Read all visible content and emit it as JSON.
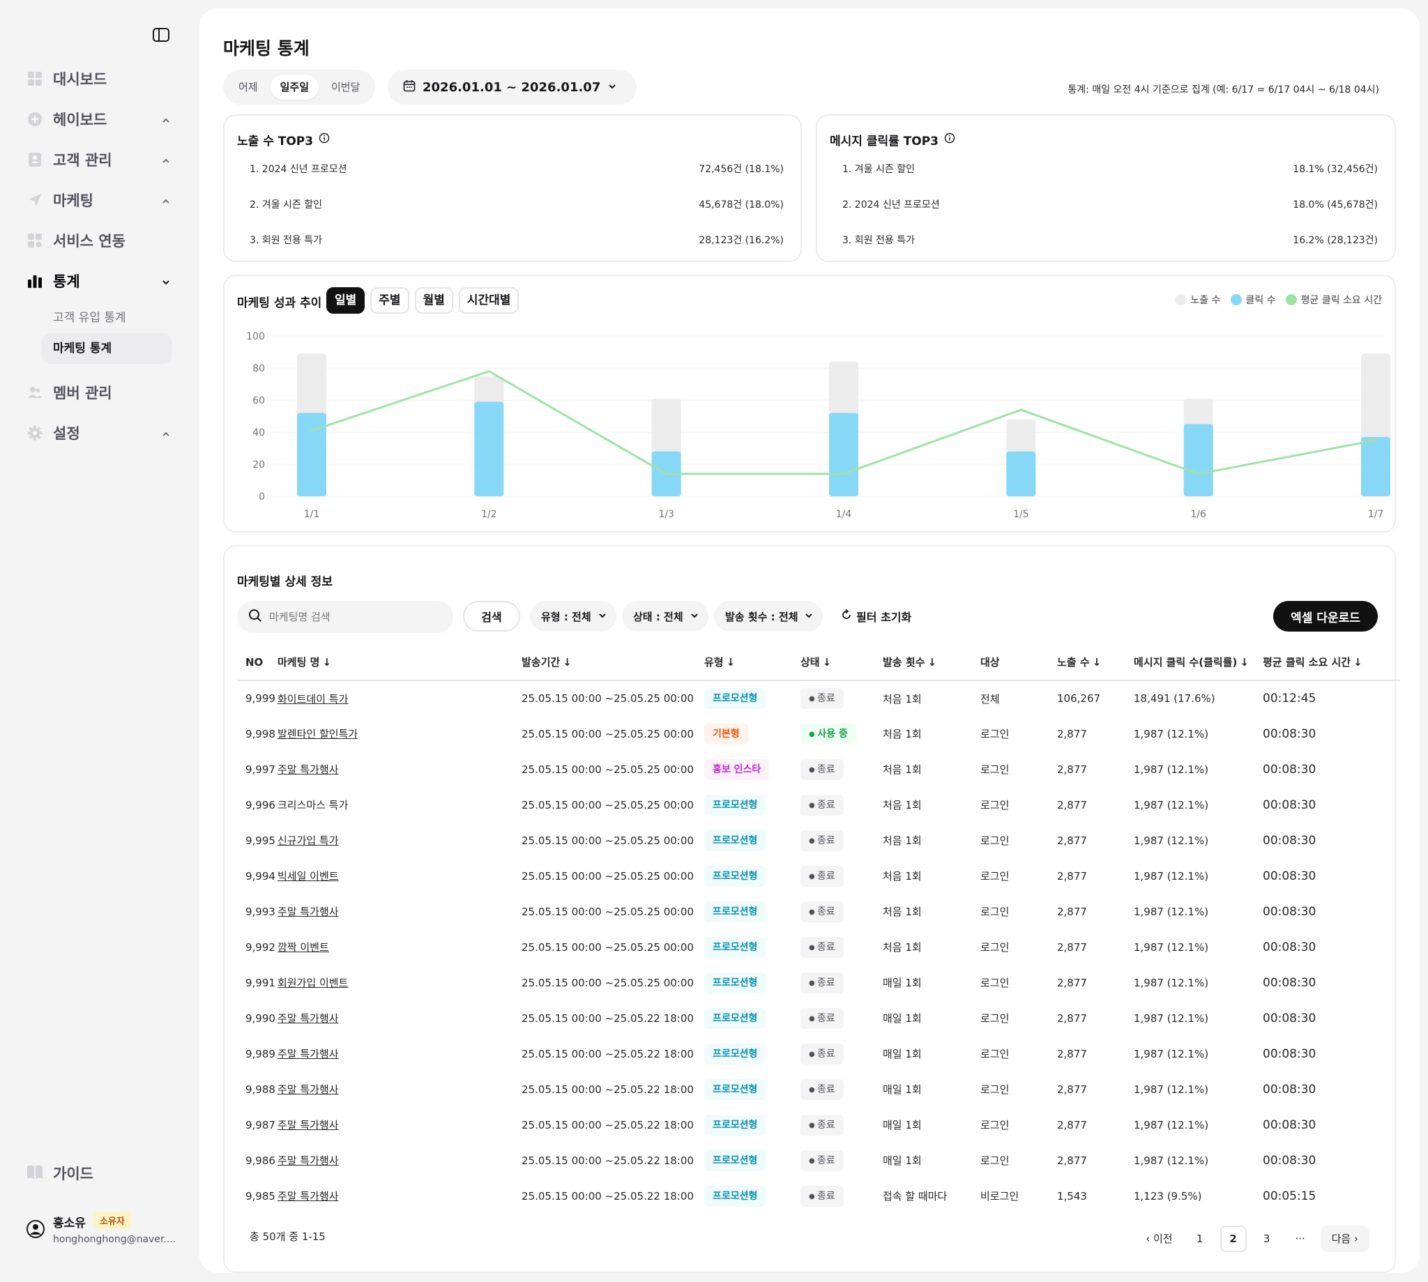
{
  "sidebar": {
    "items": [
      {
        "label": "대시보드",
        "icon": "dashboard-icon",
        "expanded": false,
        "chev": ""
      },
      {
        "label": "헤이보드",
        "icon": "plus-circle-icon",
        "chev": "up"
      },
      {
        "label": "고객 관리",
        "icon": "customer-icon",
        "chev": "up"
      },
      {
        "label": "마케팅",
        "icon": "send-icon",
        "chev": "up"
      },
      {
        "label": "서비스 연동",
        "icon": "integration-icon",
        "chev": ""
      },
      {
        "label": "통계",
        "icon": "bar-chart-icon",
        "chev": "down",
        "active": true
      }
    ],
    "sub_items": [
      "고객 유입 통계",
      "마케팅 통계"
    ],
    "items_after": [
      {
        "label": "멤버 관리",
        "icon": "members-icon",
        "chev": ""
      },
      {
        "label": "설정",
        "icon": "gear-icon",
        "chev": "up"
      }
    ],
    "guide": "가이드",
    "user": {
      "name": "홍소유",
      "role": "소유자",
      "email": "honghonghong@naver...."
    }
  },
  "header": {
    "title": "마케팅 통계",
    "range_tabs": [
      "어제",
      "일주일",
      "이번달"
    ],
    "active_range": "일주일",
    "date_range": "2026.01.01 ~ 2026.01.07",
    "note": "통계: 매일 오전 4시 기준으로 집계 (예: 6/17 = 6/17 04시 ~ 6/18 04시)"
  },
  "top_impressions": {
    "title": "노출 수 TOP3",
    "rows": [
      {
        "name": "1. 2024 신년 프로모션",
        "value": "72,456건 (18.1%)"
      },
      {
        "name": "2. 겨울 시즌 할인",
        "value": "45,678건 (18.0%)"
      },
      {
        "name": "3. 회원 전용 특가",
        "value": "28,123건 (16.2%)"
      }
    ]
  },
  "top_clicks": {
    "title": "메시지 클릭률 TOP3",
    "rows": [
      {
        "name": "1. 겨울 시즌 할인",
        "value": "18.1% (32,456건)"
      },
      {
        "name": "2. 2024 신년 프로모션",
        "value": "18.0% (45,678건)"
      },
      {
        "name": "3. 회원 전용 특가",
        "value": "16.2% (28,123건)"
      }
    ]
  },
  "trend": {
    "title": "마케팅 성과 추이",
    "tabs": [
      "일별",
      "주별",
      "월별",
      "시간대별"
    ],
    "active_tab": "일별",
    "legend": [
      {
        "label": "노출 수",
        "color": "#ececec"
      },
      {
        "label": "클릭 수",
        "color": "#87d8f7"
      },
      {
        "label": "평균 클릭 소요 시간",
        "color": "#9ee3a4"
      }
    ]
  },
  "chart_data": {
    "type": "bar",
    "categories": [
      "1/1",
      "1/2",
      "1/3",
      "1/4",
      "1/5",
      "1/6",
      "1/7"
    ],
    "series": [
      {
        "name": "노출 수",
        "values": [
          89,
          75,
          61,
          84,
          48,
          61,
          89
        ],
        "color": "#ececec"
      },
      {
        "name": "클릭 수",
        "values": [
          52,
          59,
          28,
          52,
          28,
          45,
          37
        ],
        "color": "#87d8f7"
      },
      {
        "name": "평균 클릭 소요 시간",
        "type": "line",
        "values": [
          41,
          78,
          14,
          14,
          54,
          14,
          35
        ],
        "color": "#9ee3a4"
      }
    ],
    "yticks": [
      0,
      20,
      40,
      60,
      80,
      100
    ],
    "ylim": [
      0,
      100
    ],
    "grid": true,
    "legend": "top-right"
  },
  "detail": {
    "title": "마케팅별 상세 정보",
    "search_placeholder": "마케팅명 검색",
    "search_button": "검색",
    "filters": [
      "유형 : 전체",
      "상태 : 전체",
      "발송 횟수 : 전체"
    ],
    "reset": "필터 초기화",
    "excel": "엑셀 다운로드",
    "columns": [
      "NO",
      "마케팅 명",
      "발송기간",
      "유형",
      "상태",
      "발송 횟수",
      "대상",
      "노출 수",
      "메시지 클릭 수(클릭률)",
      "평균 클릭 소요 시간"
    ],
    "sortable": [
      false,
      true,
      true,
      true,
      true,
      true,
      false,
      true,
      true,
      true
    ],
    "rows": [
      {
        "no": "9,999",
        "name": "화이트데이 특가",
        "period": "25.05.15 00:00 ~25.05.25 00:00",
        "type": "프로모션형",
        "tkind": "promo",
        "status": "종료",
        "skind": "end",
        "freq": "처음 1회",
        "target": "전체",
        "imp": "106,267",
        "click": "18,491 (17.6%)",
        "avg": "00:12:45"
      },
      {
        "no": "9,998",
        "name": "발렌타인 할인특가",
        "period": "25.05.15 00:00 ~25.05.25 00:00",
        "type": "기본형",
        "tkind": "basic",
        "status": "사용 중",
        "skind": "on",
        "freq": "처음 1회",
        "target": "로그인",
        "imp": "2,877",
        "click": "1,987 (12.1%)",
        "avg": "00:08:30"
      },
      {
        "no": "9,997",
        "name": "주말 특가행사",
        "period": "25.05.15 00:00 ~25.05.25 00:00",
        "type": "홍보 인스타",
        "tkind": "insta",
        "status": "종료",
        "skind": "end",
        "freq": "처음 1회",
        "target": "로그인",
        "imp": "2,877",
        "click": "1,987 (12.1%)",
        "avg": "00:08:30"
      },
      {
        "no": "9,996",
        "name": "크리스마스 특가",
        "period": "25.05.15 00:00 ~25.05.25 00:00",
        "type": "프로모션형",
        "tkind": "promo",
        "status": "종료",
        "skind": "end",
        "freq": "처음 1회",
        "target": "로그인",
        "imp": "2,877",
        "click": "1,987 (12.1%)",
        "avg": "00:08:30",
        "plain": true
      },
      {
        "no": "9,995",
        "name": "신규가입 특가",
        "period": "25.05.15 00:00 ~25.05.25 00:00",
        "type": "프로모션형",
        "tkind": "promo",
        "status": "종료",
        "skind": "end",
        "freq": "처음 1회",
        "target": "로그인",
        "imp": "2,877",
        "click": "1,987 (12.1%)",
        "avg": "00:08:30"
      },
      {
        "no": "9,994",
        "name": "빅세일 이벤트",
        "period": "25.05.15 00:00 ~25.05.25 00:00",
        "type": "프로모션형",
        "tkind": "promo",
        "status": "종료",
        "skind": "end",
        "freq": "처음 1회",
        "target": "로그인",
        "imp": "2,877",
        "click": "1,987 (12.1%)",
        "avg": "00:08:30"
      },
      {
        "no": "9,993",
        "name": "주말 특가행사",
        "period": "25.05.15 00:00 ~25.05.25 00:00",
        "type": "프로모션형",
        "tkind": "promo",
        "status": "종료",
        "skind": "end",
        "freq": "처음 1회",
        "target": "로그인",
        "imp": "2,877",
        "click": "1,987 (12.1%)",
        "avg": "00:08:30"
      },
      {
        "no": "9,992",
        "name": "깜짝 이벤트",
        "period": "25.05.15 00:00 ~25.05.25 00:00",
        "type": "프로모션형",
        "tkind": "promo",
        "status": "종료",
        "skind": "end",
        "freq": "처음 1회",
        "target": "로그인",
        "imp": "2,877",
        "click": "1,987 (12.1%)",
        "avg": "00:08:30"
      },
      {
        "no": "9,991",
        "name": "회원가입 이벤트",
        "period": "25.05.15 00:00 ~25.05.25 00:00",
        "type": "프로모션형",
        "tkind": "promo",
        "status": "종료",
        "skind": "end",
        "freq": "매일 1회",
        "target": "로그인",
        "imp": "2,877",
        "click": "1,987 (12.1%)",
        "avg": "00:08:30"
      },
      {
        "no": "9,990",
        "name": "주말 특가행사",
        "period": "25.05.15 00:00 ~25.05.22 18:00",
        "type": "프로모션형",
        "tkind": "promo",
        "status": "종료",
        "skind": "end",
        "freq": "매일 1회",
        "target": "로그인",
        "imp": "2,877",
        "click": "1,987 (12.1%)",
        "avg": "00:08:30"
      },
      {
        "no": "9,989",
        "name": "주말 특가행사",
        "period": "25.05.15 00:00 ~25.05.22 18:00",
        "type": "프로모션형",
        "tkind": "promo",
        "status": "종료",
        "skind": "end",
        "freq": "매일 1회",
        "target": "로그인",
        "imp": "2,877",
        "click": "1,987 (12.1%)",
        "avg": "00:08:30"
      },
      {
        "no": "9,988",
        "name": "주말 특가행사",
        "period": "25.05.15 00:00 ~25.05.22 18:00",
        "type": "프로모션형",
        "tkind": "promo",
        "status": "종료",
        "skind": "end",
        "freq": "매일 1회",
        "target": "로그인",
        "imp": "2,877",
        "click": "1,987 (12.1%)",
        "avg": "00:08:30"
      },
      {
        "no": "9,987",
        "name": "주말 특가행사",
        "period": "25.05.15 00:00 ~25.05.22 18:00",
        "type": "프로모션형",
        "tkind": "promo",
        "status": "종료",
        "skind": "end",
        "freq": "매일 1회",
        "target": "로그인",
        "imp": "2,877",
        "click": "1,987 (12.1%)",
        "avg": "00:08:30"
      },
      {
        "no": "9,986",
        "name": "주말 특가행사",
        "period": "25.05.15 00:00 ~25.05.22 18:00",
        "type": "프로모션형",
        "tkind": "promo",
        "status": "종료",
        "skind": "end",
        "freq": "매일 1회",
        "target": "로그인",
        "imp": "2,877",
        "click": "1,987 (12.1%)",
        "avg": "00:08:30"
      },
      {
        "no": "9,985",
        "name": "주말 특가행사",
        "period": "25.05.15 00:00 ~25.05.22 18:00",
        "type": "프로모션형",
        "tkind": "promo",
        "status": "종료",
        "skind": "end",
        "freq": "접속 할 때마다",
        "target": "비로그인",
        "imp": "1,543",
        "click": "1,123 (9.5%)",
        "avg": "00:05:15"
      }
    ],
    "total": "총 50개 중 1-15",
    "pager": {
      "prev": "이전",
      "pages": [
        "1",
        "2",
        "3",
        "···"
      ],
      "current": "2",
      "next": "다음"
    }
  }
}
